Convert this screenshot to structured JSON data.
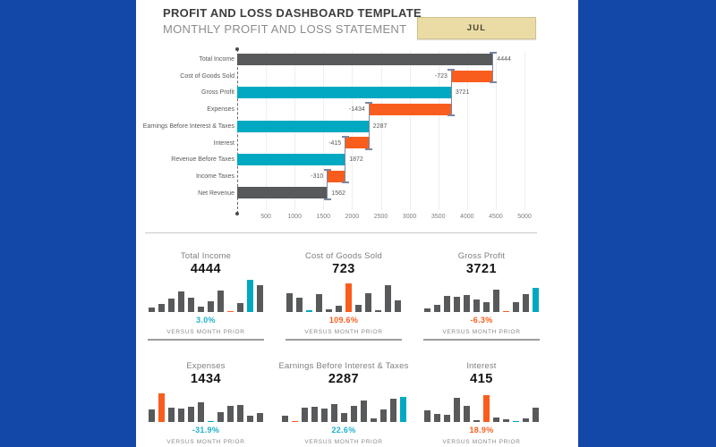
{
  "page": {
    "background": "#1448a8",
    "panel_background": "#ffffff"
  },
  "palette": {
    "gray": "#58595b",
    "teal": "#00a9c1",
    "orange": "#f95d1d",
    "steel": "#7b87a0",
    "pct_teal": "#1fb0c8",
    "pct_orange": "#f95d1d",
    "button_fill": "#ebdca5",
    "button_border": "#cfc18c"
  },
  "header": {
    "title": "PROFIT AND LOSS DASHBOARD TEMPLATE",
    "subtitle": "MONTHLY PROFIT AND LOSS STATEMENT",
    "month_button": "JUL"
  },
  "chart_data": {
    "type": "bar",
    "subtype": "horizontal-waterfall",
    "title": "",
    "xlabel": "",
    "ylabel": "",
    "xlim": [
      0,
      5000
    ],
    "x_ticks": [
      500,
      1000,
      1500,
      2000,
      2500,
      3000,
      3500,
      4000,
      4500,
      5000
    ],
    "grid": true,
    "rows": [
      {
        "label": "Total Income",
        "value": 4444,
        "display": "4444",
        "start": 0,
        "end": 4444,
        "color": "gray",
        "label_side": "right"
      },
      {
        "label": "Cost of Goods Sold",
        "value": -723,
        "display": "-723",
        "start": 3721,
        "end": 4444,
        "color": "orange",
        "label_side": "left"
      },
      {
        "label": "Gross Profit",
        "value": 3721,
        "display": "3721",
        "start": 0,
        "end": 3721,
        "color": "teal",
        "label_side": "right"
      },
      {
        "label": "Expenses",
        "value": -1434,
        "display": "-1434",
        "start": 2287,
        "end": 3721,
        "color": "orange",
        "label_side": "left"
      },
      {
        "label": "Earnings Before Interest & Taxes",
        "value": 2287,
        "display": "2287",
        "start": 0,
        "end": 2287,
        "color": "teal",
        "label_side": "right"
      },
      {
        "label": "Interest",
        "value": -415,
        "display": "-415",
        "start": 1872,
        "end": 2287,
        "color": "orange",
        "label_side": "left"
      },
      {
        "label": "Revenue Before Taxes",
        "value": 1872,
        "display": "1872",
        "start": 0,
        "end": 1872,
        "color": "teal",
        "label_side": "right"
      },
      {
        "label": "Income Taxes",
        "value": -310,
        "display": "-310",
        "start": 1562,
        "end": 1872,
        "color": "orange",
        "label_side": "left"
      },
      {
        "label": "Net Revenue",
        "value": 1562,
        "display": "1562",
        "start": 0,
        "end": 1562,
        "color": "gray",
        "label_side": "right"
      }
    ],
    "connectors": [
      {
        "value": 4444,
        "from_row": 0,
        "to_row": 1
      },
      {
        "value": 3721,
        "from_row": 1,
        "to_row": 3
      },
      {
        "value": 2287,
        "from_row": 3,
        "to_row": 5
      },
      {
        "value": 1872,
        "from_row": 5,
        "to_row": 7
      },
      {
        "value": 1562,
        "from_row": 7,
        "to_row": 8
      }
    ]
  },
  "kpi_cards": [
    {
      "title": "Total Income",
      "value": "4444",
      "percent": "3.0%",
      "percent_color": "pct_teal",
      "caption": "VERSUS MONTH PRIOR",
      "spark": {
        "heights": [
          14,
          24,
          40,
          60,
          42,
          16,
          32,
          62,
          4,
          26,
          95,
          80
        ],
        "colors": [
          "gray",
          "gray",
          "gray",
          "gray",
          "gray",
          "gray",
          "gray",
          "gray",
          "orange",
          "gray",
          "teal",
          "gray"
        ]
      }
    },
    {
      "title": "Cost of Goods Sold",
      "value": "723",
      "percent": "109.6%",
      "percent_color": "pct_orange",
      "caption": "VERSUS MONTH PRIOR",
      "spark": {
        "heights": [
          55,
          43,
          5,
          52,
          8,
          18,
          85,
          20,
          55,
          6,
          78,
          35
        ],
        "colors": [
          "gray",
          "gray",
          "teal",
          "gray",
          "gray",
          "gray",
          "orange",
          "gray",
          "gray",
          "gray",
          "gray",
          "gray"
        ]
      }
    },
    {
      "title": "Gross Profit",
      "value": "3721",
      "percent": "-6.3%",
      "percent_color": "pct_orange",
      "caption": "VERSUS MONTH PRIOR",
      "spark": {
        "heights": [
          10,
          22,
          48,
          46,
          50,
          38,
          28,
          65,
          4,
          28,
          52,
          72
        ],
        "colors": [
          "gray",
          "gray",
          "gray",
          "gray",
          "gray",
          "gray",
          "gray",
          "gray",
          "orange",
          "gray",
          "gray",
          "teal"
        ]
      }
    },
    {
      "title": "Expenses",
      "value": "1434",
      "percent": "-31.9%",
      "percent_color": "pct_teal",
      "caption": "VERSUS MONTH PRIOR",
      "spark": {
        "heights": [
          38,
          85,
          42,
          40,
          44,
          58,
          4,
          28,
          48,
          50,
          18,
          26
        ],
        "colors": [
          "gray",
          "orange",
          "gray",
          "gray",
          "gray",
          "gray",
          "teal",
          "gray",
          "gray",
          "gray",
          "gray",
          "gray"
        ]
      }
    },
    {
      "title": "Earnings Before Interest & Taxes",
      "value": "2287",
      "percent": "22.6%",
      "percent_color": "pct_teal",
      "caption": "VERSUS MONTH PRIOR",
      "spark": {
        "heights": [
          18,
          4,
          42,
          46,
          40,
          52,
          26,
          48,
          62,
          10,
          36,
          68,
          75
        ],
        "colors": [
          "gray",
          "orange",
          "gray",
          "gray",
          "gray",
          "gray",
          "gray",
          "gray",
          "gray",
          "gray",
          "gray",
          "gray",
          "teal"
        ]
      }
    },
    {
      "title": "Interest",
      "value": "415",
      "percent": "18.9%",
      "percent_color": "pct_orange",
      "caption": "VERSUS MONTH PRIOR",
      "spark": {
        "heights": [
          35,
          25,
          20,
          72,
          48,
          6,
          80,
          14,
          8,
          4,
          10,
          42
        ],
        "colors": [
          "gray",
          "gray",
          "gray",
          "gray",
          "gray",
          "gray",
          "orange",
          "gray",
          "gray",
          "teal",
          "gray",
          "gray"
        ]
      }
    }
  ]
}
